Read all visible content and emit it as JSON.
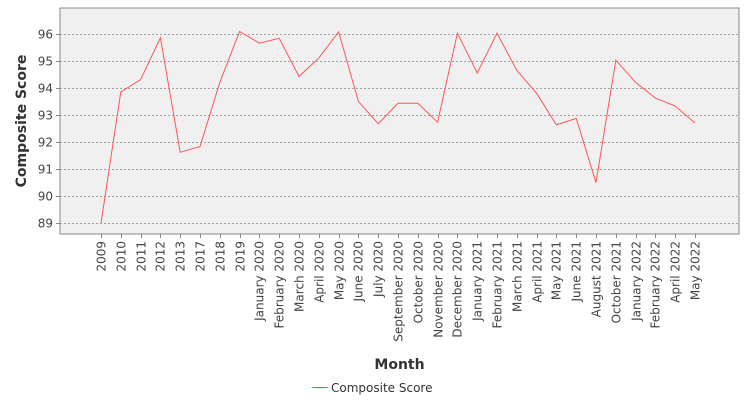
{
  "chart_data": {
    "type": "line",
    "title": "",
    "xlabel": "Month",
    "ylabel": "Composite Score",
    "categories": [
      "2009",
      "2010",
      "2011",
      "2012",
      "2013",
      "2017",
      "2018",
      "2019",
      "January 2020",
      "February 2020",
      "March 2020",
      "April 2020",
      "May 2020",
      "June 2020",
      "July 2020",
      "September 2020",
      "October 2020",
      "November 2020",
      "December 2020",
      "January 2021",
      "February 2021",
      "March 2021",
      "April 2021",
      "May 2021",
      "June 2021",
      "August 2021",
      "October 2021",
      "January 2022",
      "February 2022",
      "April 2022",
      "May 2022"
    ],
    "series": [
      {
        "name": "Composite Score",
        "color": "#ff5555",
        "values": [
          89.0,
          93.85,
          94.3,
          95.85,
          91.62,
          91.83,
          94.2,
          96.08,
          95.65,
          95.83,
          94.42,
          95.1,
          96.07,
          93.5,
          92.67,
          93.43,
          93.43,
          92.73,
          96.02,
          94.55,
          96.02,
          94.65,
          93.8,
          92.63,
          92.87,
          90.5,
          95.02,
          94.2,
          93.62,
          93.33,
          92.7
        ]
      }
    ],
    "ylim": [
      88.6,
      96.95
    ],
    "yticks": [
      89,
      90,
      91,
      92,
      93,
      94,
      95,
      96
    ],
    "grid": true,
    "legend_position": "bottom-center"
  }
}
